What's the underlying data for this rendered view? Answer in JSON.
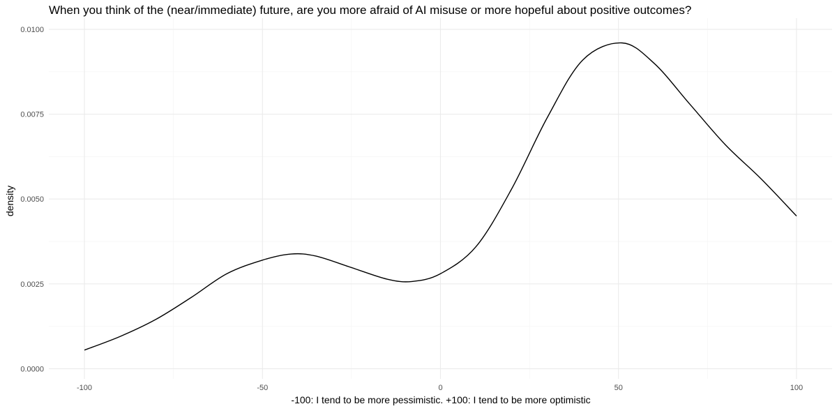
{
  "chart_data": {
    "type": "line",
    "title": "When you think of the (near/immediate) future, are you more afraid of AI misuse or more hopeful about positive outcomes?",
    "xlabel": "-100: I tend to be more pessimistic. +100: I tend to be more optimistic",
    "ylabel": "density",
    "xlim": [
      -110,
      110
    ],
    "ylim": [
      -0.0003,
      0.01033
    ],
    "x_ticks": [
      -100,
      -50,
      0,
      50,
      100
    ],
    "x_tick_labels": [
      "-100",
      "-50",
      "0",
      "50",
      "100"
    ],
    "y_ticks": [
      0,
      0.0025,
      0.005,
      0.0075,
      0.01
    ],
    "y_tick_labels": [
      "0.0000",
      "0.0025",
      "0.0050",
      "0.0075",
      "0.0100"
    ],
    "grid": true,
    "legend": "none",
    "series": [
      {
        "x": [
          -100,
          -90,
          -80,
          -70,
          -60,
          -50,
          -42,
          -35,
          -25,
          -15,
          -8,
          0,
          10,
          20,
          30,
          40,
          51,
          60,
          70,
          80,
          90,
          100
        ],
        "y": [
          0.00055,
          0.00095,
          0.00145,
          0.0021,
          0.0028,
          0.0032,
          0.00338,
          0.00332,
          0.00298,
          0.00264,
          0.00257,
          0.0028,
          0.0036,
          0.0053,
          0.0074,
          0.0091,
          0.0096,
          0.009,
          0.0078,
          0.0066,
          0.0056,
          0.0045
        ],
        "color": "#000000"
      }
    ]
  }
}
